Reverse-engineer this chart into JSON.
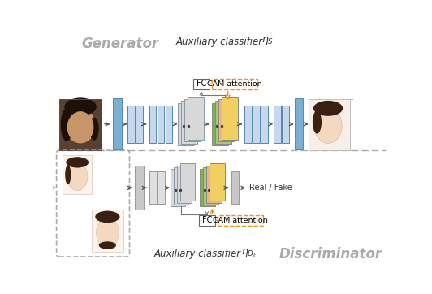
{
  "bg_color": "#ffffff",
  "title_generator": "Generator",
  "title_discriminator": "Discriminator",
  "label_aux_s": "Auxiliary classifier ",
  "label_eta_s": "$\\eta_S$",
  "label_aux_dt": "Auxiliary classifier ",
  "label_eta_dt": "$\\eta_{D_t}$",
  "label_fc": "FC",
  "label_cam": "CAM attention",
  "label_real_fake": "Real / Fake",
  "blue_color": "#7bafd4",
  "blue_light": "#c5d8ed",
  "gray_color": "#d0d0d0",
  "gray_ec": "#999999",
  "orange_color": "#e8922a",
  "green_color": "#7ab648",
  "yellow_color": "#f0d060",
  "peach_color": "#f0b090",
  "green2_color": "#a8c878",
  "white_color": "#ffffff",
  "divider_color": "#aaaaaa",
  "text_gray": "#999999",
  "text_dark": "#333333"
}
